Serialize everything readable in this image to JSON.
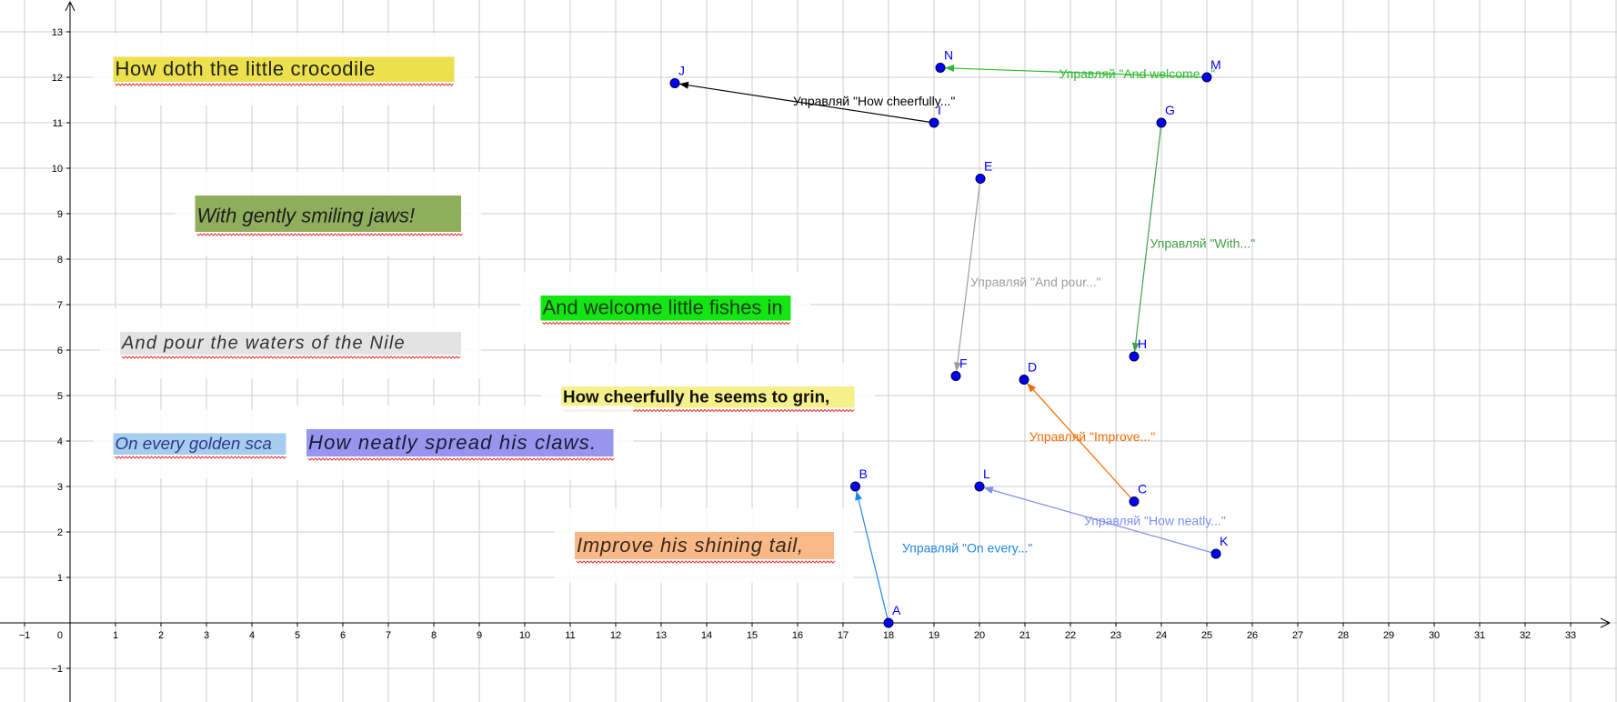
{
  "axes": {
    "x_ticks": [
      "−1",
      "1",
      "2",
      "3",
      "4",
      "5",
      "6",
      "7",
      "8",
      "9",
      "10",
      "11",
      "12",
      "13",
      "14",
      "15",
      "16",
      "17",
      "18",
      "19",
      "20",
      "21",
      "22",
      "23",
      "24",
      "25",
      "26",
      "27",
      "28",
      "29",
      "30",
      "31",
      "32",
      "33"
    ],
    "y_ticks": [
      "13",
      "12",
      "11",
      "10",
      "9",
      "8",
      "7",
      "6",
      "5",
      "4",
      "3",
      "2",
      "1",
      "−1"
    ],
    "origin": "0",
    "x_range": [
      -1.6,
      34
    ],
    "y_range": [
      -1.7,
      13.7
    ],
    "grid": true
  },
  "points": [
    {
      "name": "A",
      "x": 18.0,
      "y": 0.0
    },
    {
      "name": "B",
      "x": 17.27,
      "y": 3.0
    },
    {
      "name": "C",
      "x": 23.4,
      "y": 2.67
    },
    {
      "name": "D",
      "x": 20.98,
      "y": 5.35
    },
    {
      "name": "E",
      "x": 20.02,
      "y": 9.77
    },
    {
      "name": "F",
      "x": 19.48,
      "y": 5.43
    },
    {
      "name": "G",
      "x": 24.0,
      "y": 11.0
    },
    {
      "name": "H",
      "x": 23.4,
      "y": 5.86
    },
    {
      "name": "I",
      "x": 19.0,
      "y": 11.0
    },
    {
      "name": "J",
      "x": 13.3,
      "y": 11.87
    },
    {
      "name": "K",
      "x": 25.2,
      "y": 1.52
    },
    {
      "name": "L",
      "x": 20.0,
      "y": 3.0
    },
    {
      "name": "M",
      "x": 25.0,
      "y": 12.0
    },
    {
      "name": "N",
      "x": 19.14,
      "y": 12.21
    }
  ],
  "vectors": [
    {
      "from": "A",
      "to": "B",
      "color": "#1e88e5",
      "label": "Управляй \"On every...\"",
      "label_at": [
        18.3,
        1.55
      ]
    },
    {
      "from": "C",
      "to": "D",
      "color": "#ef6c00",
      "label": "Управляй \"Improve...\"",
      "label_at": [
        21.1,
        4.0
      ]
    },
    {
      "from": "E",
      "to": "F",
      "color": "#9e9e9e",
      "label": "Управляй \"And pour...\"",
      "label_at": [
        19.8,
        7.4
      ]
    },
    {
      "from": "G",
      "to": "H",
      "color": "#43a047",
      "label": "Управляй \"With...\"",
      "label_at": [
        23.75,
        8.25
      ]
    },
    {
      "from": "I",
      "to": "J",
      "color": "#000000",
      "label": "Управляй \"How cheerfully...\"",
      "label_at": [
        15.9,
        11.38
      ]
    },
    {
      "from": "K",
      "to": "L",
      "color": "#7e8ff0",
      "label": "Управляй \"How neatly...\"",
      "label_at": [
        22.3,
        2.15
      ]
    },
    {
      "from": "M",
      "to": "N",
      "color": "#2db92d",
      "label": "Управляй \"And welcome...\"",
      "label_at": [
        21.75,
        11.98
      ]
    }
  ],
  "text_boxes": [
    {
      "name": "how-doth",
      "text": "How doth the little crocodile",
      "bg": "#ece04c",
      "color": "#222222",
      "font": "mono",
      "style": "normal",
      "weight": "normal",
      "x": 0.95,
      "y": 12.45,
      "w": 7.5,
      "h": 0.55,
      "spacing": 0.6
    },
    {
      "name": "with-gently",
      "text": "With gently smiling jaws!",
      "bg": "#8fae5c",
      "color": "#1d1d1d",
      "font": "serif",
      "style": "italic",
      "weight": "normal",
      "x": 2.75,
      "y": 9.4,
      "w": 5.85,
      "h": 0.8,
      "spacing": 0
    },
    {
      "name": "and-welcome",
      "text": "And welcome little fishes in",
      "bg": "#13e613",
      "color": "#1f3a1f",
      "font": "sans",
      "style": "normal",
      "weight": "normal",
      "x": 10.35,
      "y": 7.2,
      "w": 5.5,
      "h": 0.55,
      "spacing": 0
    },
    {
      "name": "and-pour",
      "text": "And pour the waters of the Nile",
      "bg": "#e3e3e3",
      "color": "#333333",
      "font": "serif",
      "style": "italic",
      "weight": "normal",
      "x": 1.1,
      "y": 6.4,
      "w": 7.5,
      "h": 0.5,
      "spacing": 1.2
    },
    {
      "name": "how-cheerfully",
      "text": "How cheerfully he seems to grin,",
      "bg": "#f6f08a",
      "color": "#111111",
      "font": "sans",
      "style": "normal",
      "weight": "bold",
      "x": 10.8,
      "y": 5.2,
      "w": 6.45,
      "h": 0.47,
      "spacing": 0
    },
    {
      "name": "on-every",
      "text": "On every golden sca",
      "bg": "#a6cdee",
      "color": "#2a3a8a",
      "font": "sans",
      "style": "italic",
      "weight": "normal",
      "x": 0.95,
      "y": 4.17,
      "w": 3.8,
      "h": 0.47,
      "spacing": 0
    },
    {
      "name": "how-neatly",
      "text": "How neatly spread his claws.",
      "bg": "#9696ee",
      "color": "#1a1a3a",
      "font": "sans",
      "style": "italic",
      "weight": "normal",
      "x": 5.2,
      "y": 4.26,
      "w": 6.75,
      "h": 0.6,
      "spacing": 1.2
    },
    {
      "name": "improve",
      "text": "Improve his shining tail,",
      "bg": "#f8b888",
      "color": "#3a2a1a",
      "font": "sans",
      "style": "italic",
      "weight": "normal",
      "x": 11.1,
      "y": 2.0,
      "w": 5.7,
      "h": 0.6,
      "spacing": 0.8
    }
  ],
  "colors": {
    "point_fill": "#0000ff",
    "grid_line": "#cccccc",
    "axis_line": "#000000"
  }
}
